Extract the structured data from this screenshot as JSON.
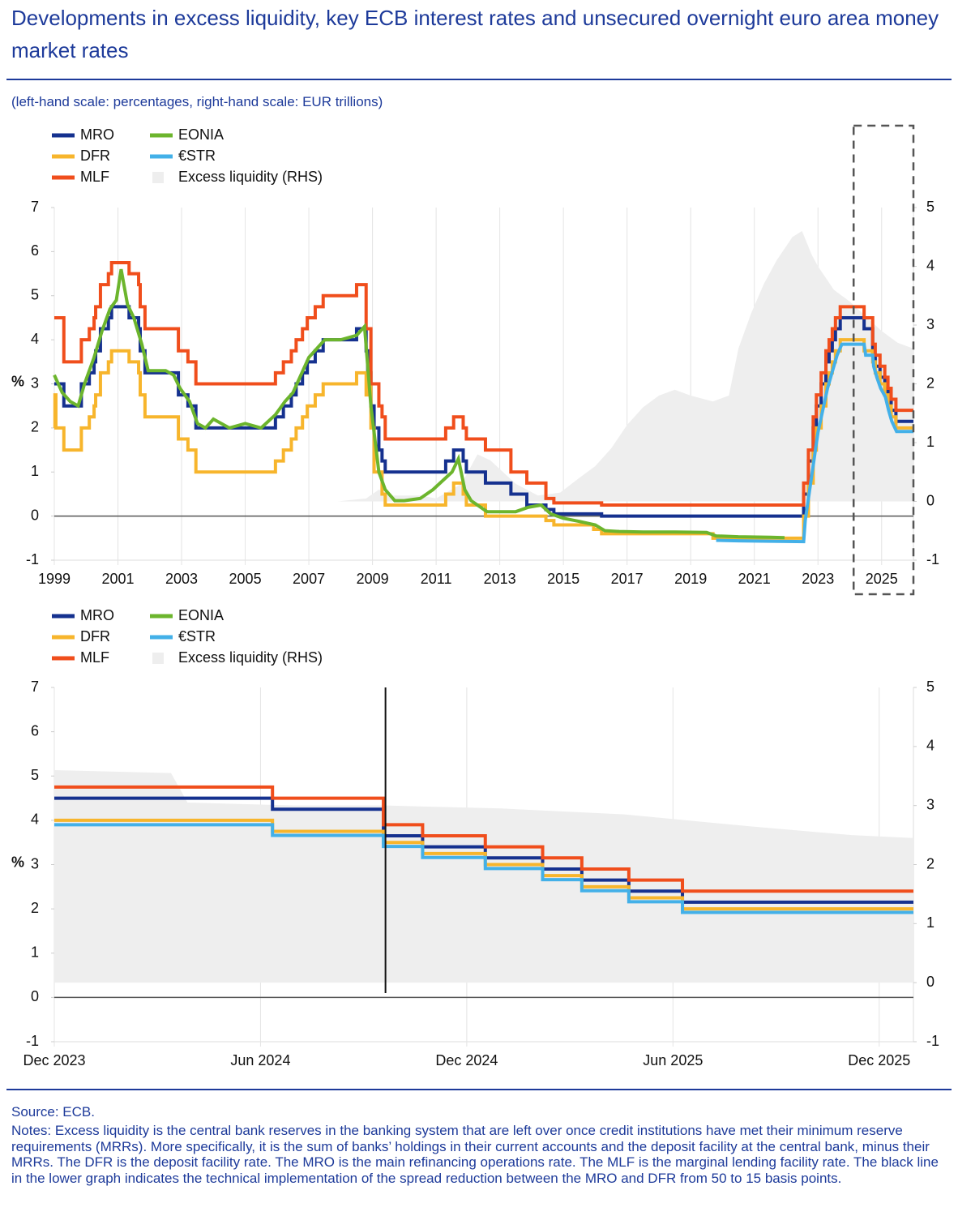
{
  "title": "Developments in excess liquidity, key ECB interest rates and unsecured overnight euro area money market rates",
  "subtitle": "(left-hand scale: percentages, right-hand scale: EUR trillions)",
  "source": "Source: ECB.",
  "notes": "Notes: Excess liquidity is the central bank reserves in the banking system that are left over once credit institutions have met their minimum reserve requirements (MRRs). More specifically, it is the sum of banks’ holdings in their current accounts and the deposit facility at the central bank, minus their MRRs. The DFR is the deposit facility rate. The MRO is the main refinancing operations rate. The MLF is the marginal lending facility rate. The black line in the lower graph indicates the technical implementation of the spread reduction between the MRO and DFR from 50 to 15 basis points.",
  "chart_data": [
    {
      "type": "line",
      "ylabel": "%",
      "xlim": [
        1999,
        2026
      ],
      "xticks": [
        1999,
        2001,
        2003,
        2005,
        2007,
        2009,
        2011,
        2013,
        2015,
        2017,
        2019,
        2021,
        2023,
        2025
      ],
      "ylim": [
        -1,
        7
      ],
      "yticks": [
        -1,
        0,
        1,
        2,
        3,
        4,
        5,
        6,
        7
      ],
      "y2lim": [
        -1,
        5
      ],
      "y2ticks": [
        -1,
        0,
        1,
        2,
        3,
        4,
        5
      ],
      "series": [
        {
          "name": "MRO",
          "color": "#15318f",
          "step": true,
          "x": [
            1999.0,
            1999.3,
            1999.85,
            2000.1,
            2000.25,
            2000.3,
            2000.45,
            2000.7,
            2000.8,
            2001.35,
            2001.65,
            2001.7,
            2001.85,
            2002.9,
            2003.2,
            2003.45,
            2005.95,
            2006.2,
            2006.45,
            2006.6,
            2006.8,
            2006.95,
            2007.2,
            2007.45,
            2008.5,
            2008.8,
            2008.85,
            2008.95,
            2009.05,
            2009.2,
            2009.3,
            2009.4,
            2011.3,
            2011.55,
            2011.85,
            2011.95,
            2012.55,
            2013.35,
            2013.85,
            2014.45,
            2014.7,
            2016.2,
            2022.55,
            2022.7,
            2022.85,
            2022.95,
            2023.1,
            2023.25,
            2023.35,
            2023.45,
            2023.55,
            2023.7,
            2024.45,
            2024.72,
            2024.8,
            2024.95,
            2025.1,
            2025.2,
            2025.3,
            2025.45,
            2026.0
          ],
          "values": [
            3.0,
            2.5,
            3.0,
            3.25,
            3.5,
            3.75,
            4.25,
            4.5,
            4.75,
            4.5,
            4.25,
            3.75,
            3.25,
            2.75,
            2.5,
            2.0,
            2.25,
            2.5,
            2.75,
            3.0,
            3.25,
            3.5,
            3.75,
            4.0,
            4.25,
            3.75,
            3.25,
            2.5,
            2.0,
            1.5,
            1.25,
            1.0,
            1.25,
            1.5,
            1.25,
            1.0,
            0.75,
            0.5,
            0.25,
            0.15,
            0.05,
            0.0,
            0.5,
            1.25,
            2.0,
            2.5,
            3.0,
            3.5,
            3.75,
            4.0,
            4.25,
            4.5,
            4.25,
            3.65,
            3.4,
            3.15,
            2.9,
            2.65,
            2.4,
            2.15,
            2.15
          ]
        },
        {
          "name": "DFR",
          "color": "#f7b52c",
          "step": true,
          "x": [
            1999.0,
            1999.02,
            1999.05,
            1999.3,
            1999.85,
            2000.1,
            2000.25,
            2000.3,
            2000.45,
            2000.7,
            2000.8,
            2001.35,
            2001.65,
            2001.7,
            2001.85,
            2002.9,
            2003.2,
            2003.45,
            2005.95,
            2006.2,
            2006.45,
            2006.6,
            2006.8,
            2006.95,
            2007.2,
            2007.45,
            2008.5,
            2008.8,
            2008.85,
            2008.95,
            2009.05,
            2009.3,
            2009.4,
            2011.3,
            2011.55,
            2011.85,
            2011.95,
            2012.55,
            2014.45,
            2014.7,
            2015.95,
            2016.2,
            2019.7,
            2022.55,
            2022.7,
            2022.85,
            2022.95,
            2023.1,
            2023.25,
            2023.35,
            2023.45,
            2023.55,
            2023.7,
            2024.45,
            2024.72,
            2024.8,
            2024.95,
            2025.1,
            2025.2,
            2025.3,
            2025.45,
            2026.0
          ],
          "values": [
            2.0,
            2.75,
            2.0,
            1.5,
            2.0,
            2.25,
            2.5,
            2.75,
            3.25,
            3.5,
            3.75,
            3.5,
            3.25,
            2.75,
            2.25,
            1.75,
            1.5,
            1.0,
            1.25,
            1.5,
            1.75,
            2.0,
            2.25,
            2.5,
            2.75,
            3.0,
            3.25,
            2.75,
            3.25,
            2.0,
            1.0,
            0.5,
            0.25,
            0.5,
            0.75,
            0.5,
            0.25,
            0.0,
            -0.1,
            -0.2,
            -0.3,
            -0.4,
            -0.5,
            0.0,
            0.75,
            1.5,
            2.0,
            2.5,
            3.0,
            3.25,
            3.5,
            3.75,
            4.0,
            3.75,
            3.5,
            3.25,
            3.0,
            2.75,
            2.5,
            2.25,
            2.0,
            2.0
          ]
        },
        {
          "name": "MLF",
          "color": "#f04e1c",
          "step": true,
          "x": [
            1999.0,
            1999.3,
            1999.85,
            2000.1,
            2000.25,
            2000.3,
            2000.45,
            2000.7,
            2000.8,
            2001.35,
            2001.65,
            2001.7,
            2001.85,
            2002.9,
            2003.2,
            2003.45,
            2005.95,
            2006.2,
            2006.45,
            2006.6,
            2006.8,
            2006.95,
            2007.2,
            2007.45,
            2008.5,
            2008.8,
            2008.95,
            2009.2,
            2009.3,
            2009.4,
            2011.3,
            2011.55,
            2011.85,
            2011.95,
            2012.55,
            2013.35,
            2013.85,
            2014.45,
            2014.7,
            2016.2,
            2022.55,
            2022.7,
            2022.85,
            2022.95,
            2023.1,
            2023.25,
            2023.35,
            2023.45,
            2023.55,
            2023.7,
            2024.45,
            2024.72,
            2024.8,
            2024.95,
            2025.1,
            2025.2,
            2025.3,
            2025.45,
            2026.0
          ],
          "values": [
            4.5,
            3.5,
            4.0,
            4.25,
            4.5,
            4.75,
            5.25,
            5.5,
            5.75,
            5.5,
            5.25,
            4.75,
            4.25,
            3.75,
            3.5,
            3.0,
            3.25,
            3.5,
            3.75,
            4.0,
            4.25,
            4.5,
            4.75,
            5.0,
            5.25,
            4.25,
            3.0,
            2.5,
            2.25,
            1.75,
            2.0,
            2.25,
            2.0,
            1.75,
            1.5,
            1.0,
            0.75,
            0.4,
            0.3,
            0.25,
            0.75,
            1.5,
            2.25,
            2.75,
            3.25,
            3.75,
            4.0,
            4.25,
            4.5,
            4.75,
            4.5,
            3.9,
            3.65,
            3.4,
            3.15,
            2.9,
            2.65,
            2.4,
            2.4
          ]
        },
        {
          "name": "EONIA",
          "color": "#6cb52d",
          "step": false,
          "x": [
            1999.0,
            1999.25,
            1999.5,
            1999.75,
            1999.95,
            2000.25,
            2000.5,
            2000.75,
            2000.95,
            2001.1,
            2001.3,
            2001.5,
            2001.75,
            2001.95,
            2002.25,
            2002.5,
            2002.75,
            2002.95,
            2003.25,
            2003.5,
            2003.75,
            2004.0,
            2004.5,
            2005.0,
            2005.5,
            2005.95,
            2006.25,
            2006.5,
            2006.75,
            2007.0,
            2007.25,
            2007.5,
            2007.75,
            2008.0,
            2008.5,
            2008.75,
            2008.95,
            2009.2,
            2009.4,
            2009.7,
            2010.0,
            2010.5,
            2010.9,
            2011.2,
            2011.5,
            2011.7,
            2011.9,
            2012.1,
            2012.6,
            2013.0,
            2013.5,
            2013.9,
            2014.3,
            2014.6,
            2015.0,
            2015.5,
            2016.0,
            2016.3,
            2016.75,
            2017.5,
            2018.5,
            2019.5,
            2019.8,
            2020.5,
            2021.5,
            2021.95
          ],
          "values": [
            3.2,
            2.8,
            2.6,
            2.5,
            3.0,
            3.6,
            4.2,
            4.7,
            4.9,
            5.6,
            4.8,
            4.5,
            3.9,
            3.3,
            3.3,
            3.3,
            3.2,
            2.9,
            2.6,
            2.1,
            2.0,
            2.2,
            2.0,
            2.1,
            2.0,
            2.3,
            2.6,
            2.8,
            3.2,
            3.6,
            3.8,
            4.0,
            4.0,
            4.0,
            4.1,
            4.3,
            2.5,
            1.0,
            0.6,
            0.35,
            0.35,
            0.4,
            0.6,
            0.8,
            1.0,
            1.3,
            0.6,
            0.35,
            0.1,
            0.1,
            0.1,
            0.2,
            0.25,
            0.05,
            -0.05,
            -0.12,
            -0.2,
            -0.33,
            -0.35,
            -0.36,
            -0.36,
            -0.37,
            -0.45,
            -0.47,
            -0.48,
            -0.49
          ]
        },
        {
          "name": "€STR",
          "color": "#43b0e8",
          "step": false,
          "x": [
            2019.8,
            2020.5,
            2021.5,
            2022.55,
            2022.6,
            2022.75,
            2022.9,
            2023.0,
            2023.15,
            2023.3,
            2023.4,
            2023.5,
            2023.6,
            2023.75,
            2024.45,
            2024.5,
            2024.72,
            2024.75,
            2024.85,
            2024.97,
            2025.12,
            2025.22,
            2025.32,
            2025.47,
            2026.0
          ],
          "values": [
            -0.55,
            -0.56,
            -0.57,
            -0.58,
            -0.1,
            0.65,
            1.4,
            1.9,
            2.4,
            2.9,
            3.15,
            3.4,
            3.65,
            3.9,
            3.9,
            3.65,
            3.65,
            3.4,
            3.15,
            2.9,
            2.7,
            2.4,
            2.15,
            1.92,
            1.92
          ]
        },
        {
          "name": "Excess liquidity (RHS)",
          "color": "#eeeeee",
          "axis": "y2",
          "area": true,
          "x": [
            1999.0,
            2007.9,
            2008.8,
            2009.2,
            2009.6,
            2010.5,
            2011.0,
            2011.8,
            2012.3,
            2012.7,
            2013.5,
            2014.2,
            2014.9,
            2015.5,
            2016.0,
            2016.5,
            2017.0,
            2017.5,
            2018.0,
            2018.5,
            2019.0,
            2019.7,
            2020.2,
            2020.5,
            2020.9,
            2021.3,
            2021.7,
            2022.2,
            2022.5,
            2022.8,
            2023.0,
            2023.5,
            2024.0,
            2024.5,
            2025.0,
            2025.5,
            2026.0
          ],
          "values": [
            0,
            0,
            0.05,
            0.2,
            0.1,
            0.1,
            0.05,
            0.3,
            0.8,
            0.7,
            0.3,
            0.1,
            0.15,
            0.4,
            0.6,
            0.9,
            1.3,
            1.6,
            1.8,
            1.9,
            1.8,
            1.7,
            1.8,
            2.6,
            3.2,
            3.7,
            4.1,
            4.5,
            4.6,
            4.2,
            4.0,
            3.6,
            3.4,
            3.15,
            2.9,
            2.7,
            2.6
          ]
        }
      ]
    },
    {
      "type": "line",
      "ylabel": "%",
      "xlim": [
        2023.917,
        2026.0
      ],
      "xticks": [
        {
          "value": 2023.917,
          "label": "Dec 2023"
        },
        {
          "value": 2024.417,
          "label": "Jun 2024"
        },
        {
          "value": 2024.917,
          "label": "Dec 2024"
        },
        {
          "value": 2025.417,
          "label": "Jun 2025"
        },
        {
          "value": 2025.917,
          "label": "Dec 2025"
        }
      ],
      "ylim": [
        -1,
        7
      ],
      "yticks": [
        -1,
        0,
        1,
        2,
        3,
        4,
        5,
        6,
        7
      ],
      "y2lim": [
        -1,
        5
      ],
      "y2ticks": [
        -1,
        0,
        1,
        2,
        3,
        4,
        5
      ],
      "vline_x": 2024.72,
      "series": [
        {
          "name": "MRO",
          "color": "#15318f",
          "step": true,
          "x": [
            2023.917,
            2024.446,
            2024.715,
            2024.81,
            2024.962,
            2025.101,
            2025.196,
            2025.31,
            2025.44,
            2026.0
          ],
          "values": [
            4.5,
            4.25,
            3.65,
            3.4,
            3.15,
            2.9,
            2.65,
            2.4,
            2.15,
            2.15
          ]
        },
        {
          "name": "DFR",
          "color": "#f7b52c",
          "step": true,
          "x": [
            2023.917,
            2024.446,
            2024.715,
            2024.81,
            2024.962,
            2025.101,
            2025.196,
            2025.31,
            2025.44,
            2026.0
          ],
          "values": [
            4.0,
            3.75,
            3.5,
            3.25,
            3.0,
            2.75,
            2.5,
            2.25,
            2.0,
            2.0
          ]
        },
        {
          "name": "MLF",
          "color": "#f04e1c",
          "step": true,
          "x": [
            2023.917,
            2024.446,
            2024.715,
            2024.81,
            2024.962,
            2025.101,
            2025.196,
            2025.31,
            2025.44,
            2026.0
          ],
          "values": [
            4.75,
            4.5,
            3.9,
            3.65,
            3.4,
            3.15,
            2.9,
            2.65,
            2.4,
            2.4
          ]
        },
        {
          "name": "EONIA",
          "color": "#6cb52d",
          "step": false,
          "x": [],
          "values": []
        },
        {
          "name": "€STR",
          "color": "#43b0e8",
          "step": true,
          "x": [
            2023.917,
            2024.446,
            2024.715,
            2024.81,
            2024.962,
            2025.101,
            2025.196,
            2025.31,
            2025.44,
            2026.0
          ],
          "values": [
            3.9,
            3.66,
            3.41,
            3.16,
            2.91,
            2.66,
            2.41,
            2.16,
            1.92,
            1.92
          ]
        },
        {
          "name": "Excess liquidity (RHS)",
          "color": "#eeeeee",
          "axis": "y2",
          "area": true,
          "x": [
            2023.917,
            2024.2,
            2024.24,
            2024.5,
            2024.72,
            2025.0,
            2025.3,
            2025.6,
            2025.85,
            2026.0
          ],
          "values": [
            3.6,
            3.55,
            3.05,
            3.0,
            3.0,
            2.95,
            2.85,
            2.65,
            2.5,
            2.45
          ]
        }
      ]
    }
  ]
}
